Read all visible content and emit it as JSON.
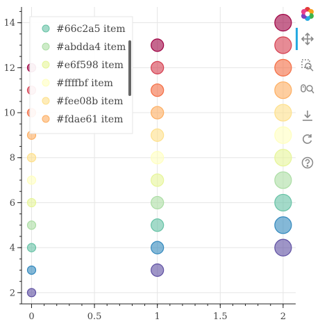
{
  "chart_data": {
    "type": "scatter",
    "xlim": [
      -0.08,
      2.1
    ],
    "ylim": [
      1.5,
      14.7
    ],
    "x_ticks": [
      0,
      0.5,
      1,
      1.5,
      2
    ],
    "x_tick_labels": [
      "0",
      "0.5",
      "1",
      "1.5",
      "2"
    ],
    "y_ticks": [
      2,
      4,
      6,
      8,
      10,
      12,
      14
    ],
    "y_tick_labels": [
      "2",
      "4",
      "6",
      "8",
      "10",
      "12",
      "14"
    ],
    "grid": true,
    "legend_position": "top-left",
    "palette": [
      "#5e4fa2",
      "#3288bd",
      "#66c2a5",
      "#abdda4",
      "#e6f598",
      "#ffffbf",
      "#fee08b",
      "#fdae61",
      "#f46d43",
      "#d53e4f",
      "#9e0142"
    ],
    "series": [
      {
        "x": 0,
        "size": 6,
        "points": [
          {
            "y": 2,
            "color": "#5e4fa2"
          },
          {
            "y": 3,
            "color": "#3288bd"
          },
          {
            "y": 4,
            "color": "#66c2a5"
          },
          {
            "y": 5,
            "color": "#abdda4"
          },
          {
            "y": 6,
            "color": "#e6f598"
          },
          {
            "y": 7,
            "color": "#ffffbf"
          },
          {
            "y": 8,
            "color": "#fee08b"
          },
          {
            "y": 9,
            "color": "#fdae61"
          },
          {
            "y": 10,
            "color": "#f46d43"
          },
          {
            "y": 11,
            "color": "#d53e4f"
          },
          {
            "y": 12,
            "color": "#9e0142"
          }
        ]
      },
      {
        "x": 1,
        "size": 9,
        "points": [
          {
            "y": 3,
            "color": "#5e4fa2"
          },
          {
            "y": 4,
            "color": "#3288bd"
          },
          {
            "y": 5,
            "color": "#66c2a5"
          },
          {
            "y": 6,
            "color": "#abdda4"
          },
          {
            "y": 7,
            "color": "#e6f598"
          },
          {
            "y": 8,
            "color": "#ffffbf"
          },
          {
            "y": 9,
            "color": "#fee08b"
          },
          {
            "y": 10,
            "color": "#fdae61"
          },
          {
            "y": 11,
            "color": "#f46d43"
          },
          {
            "y": 12,
            "color": "#d53e4f"
          },
          {
            "y": 13,
            "color": "#9e0142"
          }
        ]
      },
      {
        "x": 2,
        "size": 12,
        "points": [
          {
            "y": 4,
            "color": "#5e4fa2"
          },
          {
            "y": 5,
            "color": "#3288bd"
          },
          {
            "y": 6,
            "color": "#66c2a5"
          },
          {
            "y": 7,
            "color": "#abdda4"
          },
          {
            "y": 8,
            "color": "#e6f598"
          },
          {
            "y": 9,
            "color": "#ffffbf"
          },
          {
            "y": 10,
            "color": "#fee08b"
          },
          {
            "y": 11,
            "color": "#fdae61"
          },
          {
            "y": 12,
            "color": "#f46d43"
          },
          {
            "y": 13,
            "color": "#d53e4f"
          },
          {
            "y": 14,
            "color": "#9e0142"
          }
        ]
      }
    ],
    "legend": [
      {
        "label": "#66c2a5 item",
        "color": "#66c2a5"
      },
      {
        "label": "#abdda4 item",
        "color": "#abdda4"
      },
      {
        "label": "#e6f598 item",
        "color": "#e6f598"
      },
      {
        "label": "#ffffbf item",
        "color": "#ffffbf"
      },
      {
        "label": "#fee08b item",
        "color": "#fee08b"
      },
      {
        "label": "#fdae61 item",
        "color": "#fdae61"
      }
    ]
  },
  "toolbar": {
    "active_tool": "pan",
    "tools": [
      "bokeh-logo-icon",
      "pan-icon",
      "box-zoom-icon",
      "wheel-zoom-icon",
      "save-icon",
      "reset-icon",
      "help-icon"
    ]
  }
}
